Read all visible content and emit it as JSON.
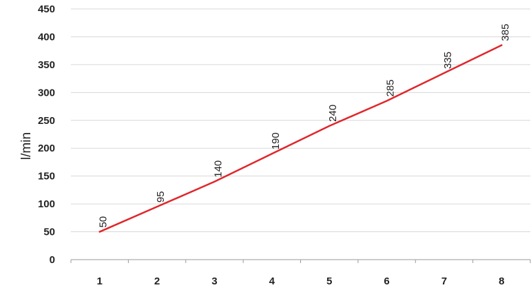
{
  "chart_data": {
    "type": "line",
    "title": "",
    "xlabel": "",
    "ylabel": "l/min",
    "categories": [
      "1",
      "2",
      "3",
      "4",
      "5",
      "6",
      "7",
      "8"
    ],
    "series": [
      {
        "values": [
          50,
          95,
          140,
          190,
          240,
          285,
          335,
          385
        ],
        "labels": [
          "50",
          "95",
          "140",
          "190",
          "240",
          "285",
          "335",
          "385"
        ],
        "color": "#e0262b"
      }
    ],
    "ylim": [
      0,
      450
    ],
    "yticks": [
      "0",
      "50",
      "100",
      "150",
      "200",
      "250",
      "300",
      "350",
      "400",
      "450"
    ],
    "grid": true,
    "legend": "none"
  },
  "colors": {
    "gridline": "#d7d7d7",
    "axis": "#9a9a9a",
    "text": "#222222"
  }
}
